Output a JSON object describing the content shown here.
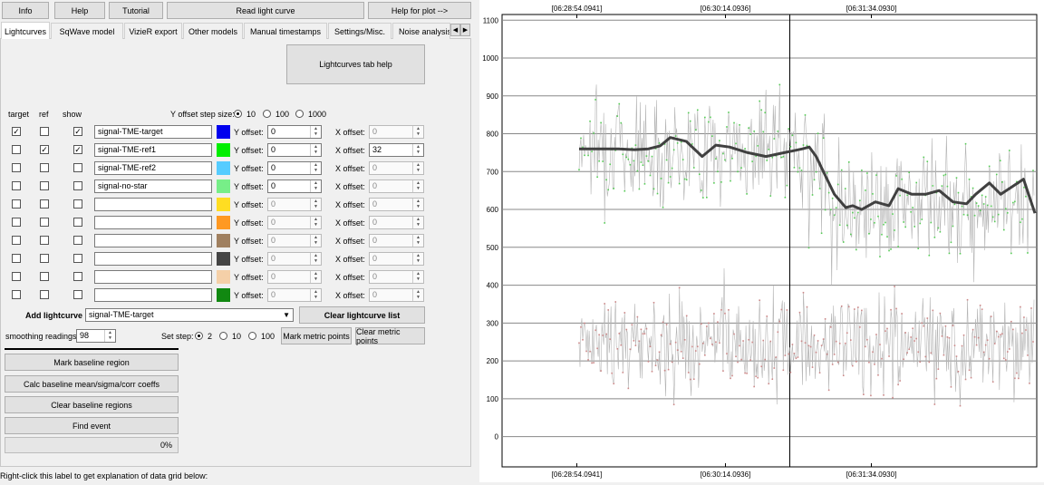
{
  "top_buttons": {
    "info": "Info",
    "help": "Help",
    "tutorial": "Tutorial",
    "read_light_curve": "Read light curve",
    "help_for_plot": "Help for plot -->"
  },
  "tabs": [
    {
      "label": "Lightcurves"
    },
    {
      "label": "SqWave model"
    },
    {
      "label": "VizieR export"
    },
    {
      "label": "Other models"
    },
    {
      "label": "Manual timestamps"
    },
    {
      "label": "Settings/Misc."
    },
    {
      "label": "Noise analysis/I"
    }
  ],
  "panel": {
    "help_button": "Lightcurves tab help",
    "col_target": "target",
    "col_ref": "ref",
    "col_show": "show",
    "y_step_label": "Y offset step size:",
    "y_step_options": [
      "10",
      "100",
      "1000"
    ],
    "y_offset_label": "Y offset:",
    "x_offset_label": "X offset:",
    "rows": [
      {
        "target": true,
        "ref": false,
        "show": true,
        "name": "signal-TME-target",
        "color": "#0000ee",
        "y": "0",
        "x": "0",
        "y_enabled": true,
        "x_enabled": false
      },
      {
        "target": false,
        "ref": true,
        "show": true,
        "name": "signal-TME-ref1",
        "color": "#00ee00",
        "y": "0",
        "x": "32",
        "y_enabled": true,
        "x_enabled": true
      },
      {
        "target": false,
        "ref": false,
        "show": false,
        "name": "signal-TME-ref2",
        "color": "#55ccff",
        "y": "0",
        "x": "0",
        "y_enabled": true,
        "x_enabled": false
      },
      {
        "target": false,
        "ref": false,
        "show": false,
        "name": "signal-no-star",
        "color": "#77ee88",
        "y": "0",
        "x": "0",
        "y_enabled": true,
        "x_enabled": false
      },
      {
        "target": false,
        "ref": false,
        "show": false,
        "name": "",
        "color": "#ffdd22",
        "y": "0",
        "x": "0",
        "y_enabled": false,
        "x_enabled": false
      },
      {
        "target": false,
        "ref": false,
        "show": false,
        "name": "",
        "color": "#ff9922",
        "y": "0",
        "x": "0",
        "y_enabled": false,
        "x_enabled": false
      },
      {
        "target": false,
        "ref": false,
        "show": false,
        "name": "",
        "color": "#a08060",
        "y": "0",
        "x": "0",
        "y_enabled": false,
        "x_enabled": false
      },
      {
        "target": false,
        "ref": false,
        "show": false,
        "name": "",
        "color": "#444444",
        "y": "0",
        "x": "0",
        "y_enabled": false,
        "x_enabled": false
      },
      {
        "target": false,
        "ref": false,
        "show": false,
        "name": "",
        "color": "#f5d0a8",
        "y": "0",
        "x": "0",
        "y_enabled": false,
        "x_enabled": false
      },
      {
        "target": false,
        "ref": false,
        "show": false,
        "name": "",
        "color": "#118811",
        "y": "0",
        "x": "0",
        "y_enabled": false,
        "x_enabled": false
      }
    ],
    "add_lightcurve_label": "Add lightcurve",
    "add_lightcurve_value": "signal-TME-target",
    "clear_list_button": "Clear lightcurve list",
    "smoothing_label": "smoothing readings",
    "smoothing_value": "98",
    "set_step_label": "Set step:",
    "set_step_options": [
      "2",
      "10",
      "100"
    ],
    "mark_metric_button": "Mark metric points",
    "clear_metric_button": "Clear metric points",
    "mark_baseline_button": "Mark baseline region",
    "calc_baseline_button": "Calc baseline mean/sigma/corr coeffs",
    "clear_baseline_button": "Clear baseline regions",
    "find_event_button": "Find event",
    "progress_text": "0%",
    "progress_value": 0
  },
  "status_label": "Right-click this label to get explanation of data grid below:",
  "chart_data": {
    "type": "line",
    "x_tick_labels": [
      "[06:28:54.0941]",
      "[06:30:14.0936]",
      "[06:31:34.0930]"
    ],
    "y_ticks": [
      0,
      100,
      200,
      300,
      400,
      500,
      600,
      700,
      800,
      900,
      1000,
      1100
    ],
    "ylim": [
      -80,
      1115
    ],
    "grid": true,
    "colors": {
      "upper_points": "#55cc55",
      "lower_points": "#cc8888",
      "noise_lines": "#b4b4b4",
      "smooth": "#404040"
    },
    "series": [
      {
        "segments": [
          {
            "x": [
              0.0,
              0.06
            ],
            "level": 780,
            "spread": 75
          },
          {
            "x": [
              0.06,
              0.5
            ],
            "level": 760,
            "spread": 70
          },
          {
            "x": [
              0.5,
              0.55
            ],
            "level": 700,
            "spread": 75
          },
          {
            "x": [
              0.55,
              1.0
            ],
            "level": 620,
            "spread": 75
          }
        ]
      },
      {
        "segments": [
          {
            "x": [
              0.0,
              1.0
            ],
            "level": 245,
            "spread": 65
          }
        ]
      },
      {
        "x": [
          0.0,
          0.048,
          0.087,
          0.121,
          0.152,
          0.178,
          0.2,
          0.235,
          0.27,
          0.3,
          0.33,
          0.37,
          0.41,
          0.45,
          0.47,
          0.49,
          0.505,
          0.52,
          0.54,
          0.56,
          0.585,
          0.6,
          0.62,
          0.65,
          0.68,
          0.7,
          0.73,
          0.76,
          0.79,
          0.82,
          0.85,
          0.87,
          0.9,
          0.925,
          0.95,
          0.975,
          1.0
        ],
        "y": [
          760,
          760,
          760,
          758,
          760,
          768,
          790,
          780,
          740,
          770,
          765,
          750,
          740,
          750,
          755,
          760,
          765,
          740,
          690,
          640,
          605,
          610,
          600,
          620,
          610,
          655,
          640,
          640,
          650,
          620,
          615,
          640,
          670,
          640,
          660,
          680,
          590
        ]
      }
    ]
  }
}
